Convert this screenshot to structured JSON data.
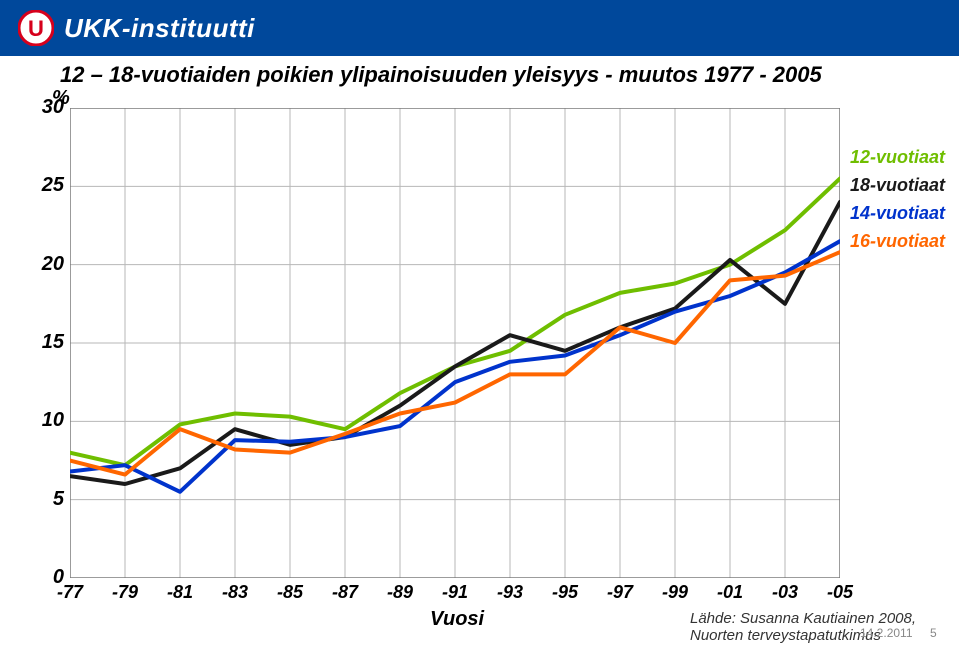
{
  "header": {
    "org_name": "UKK-instituutti",
    "logo_bg": "#ffffff",
    "logo_u_color": "#d6001c",
    "header_bg": "#00489b"
  },
  "chart": {
    "type": "line",
    "title": "12 – 18-vuotiaiden poikien ylipainoisuuden yleisyys - muutos 1977 - 2005",
    "y_unit": "%",
    "x_label": "Vuosi",
    "x_categories": [
      "-77",
      "-79",
      "-81",
      "-83",
      "-85",
      "-87",
      "-89",
      "-91",
      "-93",
      "-95",
      "-97",
      "-99",
      "-01",
      "-03",
      "-05"
    ],
    "y_ticks": [
      0,
      5,
      10,
      15,
      20,
      25,
      30
    ],
    "ylim": [
      0,
      30
    ],
    "plot_bg": "#ffffff",
    "grid_color": "#b7b7b7",
    "grid_stroke": 1,
    "plot_border_color": "#7a7a7a",
    "axis_font_size": 20,
    "tick_font_size": 18,
    "line_width": 4,
    "series": [
      {
        "name": "12-vuotiaat",
        "color": "#6fbe00",
        "values": [
          8.0,
          7.2,
          9.8,
          10.5,
          10.3,
          9.5,
          11.8,
          13.5,
          14.5,
          16.8,
          18.2,
          18.8,
          20.0,
          22.2,
          25.5
        ]
      },
      {
        "name": "18-vuotiaat",
        "color": "#1a1a1a",
        "values": [
          6.5,
          6.0,
          7.0,
          9.5,
          8.5,
          9.0,
          11.0,
          13.5,
          15.5,
          14.5,
          16.0,
          17.2,
          20.3,
          17.5,
          24.0
        ]
      },
      {
        "name": "14-vuotiaat",
        "color": "#0033cc",
        "values": [
          6.8,
          7.2,
          5.5,
          8.8,
          8.7,
          9.0,
          9.7,
          12.5,
          13.8,
          14.2,
          15.5,
          17.0,
          18.0,
          19.5,
          21.5
        ]
      },
      {
        "name": "16-vuotiaat",
        "color": "#ff6600",
        "values": [
          7.5,
          6.6,
          9.5,
          8.2,
          8.0,
          9.2,
          10.5,
          11.2,
          13.0,
          13.0,
          16.0,
          15.0,
          19.0,
          19.3,
          20.8
        ]
      }
    ],
    "legend": [
      {
        "label": "12-vuotiaat",
        "color": "#6fbe00"
      },
      {
        "label": "18-vuotiaat",
        "color": "#1a1a1a"
      },
      {
        "label": "14-vuotiaat",
        "color": "#0033cc"
      },
      {
        "label": "16-vuotiaat",
        "color": "#ff6600"
      }
    ]
  },
  "footer": {
    "source_line1": "Lähde: Susanna Kautiainen 2008,",
    "source_line2": "Nuorten terveystapatutkimus",
    "date": "14.2.2011",
    "page": "5"
  }
}
